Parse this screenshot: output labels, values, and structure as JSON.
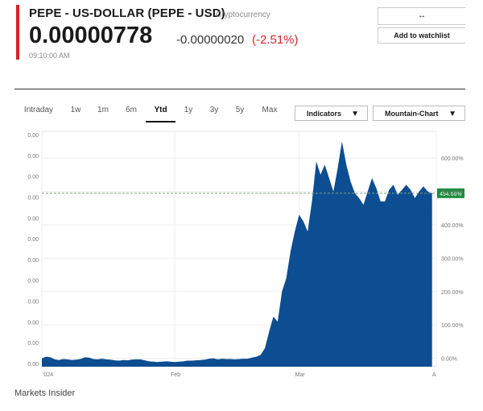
{
  "header": {
    "title": "PEPE - US-DOLLAR (PEPE - USD)",
    "category": "Cryptocurrency",
    "price": "0.00000778",
    "change": "-0.00000020",
    "change_pct": "(-2.51%)",
    "time": "09:10:00 AM",
    "top_button": "↔",
    "watchlist_button": "Add to watchlist",
    "accent_color": "#d6232a"
  },
  "tabs": [
    "Intraday",
    "1w",
    "1m",
    "6m",
    "Ytd",
    "1y",
    "3y",
    "5y",
    "Max"
  ],
  "active_tab": "Ytd",
  "controls": {
    "indicators": "Indicators",
    "chart_type": "Mountain-Chart"
  },
  "footer": {
    "source": "Markets Insider"
  },
  "chart_data": {
    "type": "area",
    "fill_color": "#0d4d91",
    "current_label": "494.66%",
    "current_label_color": "#1a8c3a",
    "x_ticks": [
      "'024",
      "Feb",
      "Mar",
      "A"
    ],
    "x_tick_days": [
      0,
      31,
      60,
      92
    ],
    "y_left_labels": [
      "0.00",
      "0.00",
      "0.00",
      "0.00",
      "0.00",
      "0.00",
      "0.00",
      "0.00",
      "0.00",
      "0.00",
      "0.00",
      "0.00"
    ],
    "y_right_ticks": [
      0,
      100,
      200,
      300,
      400,
      500,
      600
    ],
    "y_right_labels": [
      "0.00%",
      "100.00%",
      "200.00%",
      "300.00%",
      "400.00%",
      "500.00%",
      "600.00%"
    ],
    "xlim": [
      0,
      92
    ],
    "ylim": [
      -25,
      680
    ],
    "grid": true,
    "points": [
      [
        0,
        0
      ],
      [
        1,
        5
      ],
      [
        2,
        3
      ],
      [
        3,
        -3
      ],
      [
        4,
        -5
      ],
      [
        5,
        -2
      ],
      [
        6,
        -3
      ],
      [
        7,
        -5
      ],
      [
        8,
        -4
      ],
      [
        9,
        -2
      ],
      [
        10,
        3
      ],
      [
        11,
        2
      ],
      [
        12,
        -2
      ],
      [
        13,
        -3
      ],
      [
        14,
        -1
      ],
      [
        15,
        -3
      ],
      [
        16,
        -4
      ],
      [
        17,
        -6
      ],
      [
        18,
        -7
      ],
      [
        19,
        -5
      ],
      [
        20,
        -6
      ],
      [
        21,
        -4
      ],
      [
        22,
        -3
      ],
      [
        23,
        -3
      ],
      [
        24,
        -6
      ],
      [
        25,
        -9
      ],
      [
        26,
        -10
      ],
      [
        27,
        -11
      ],
      [
        28,
        -10
      ],
      [
        29,
        -9
      ],
      [
        30,
        -10
      ],
      [
        31,
        -11
      ],
      [
        32,
        -10
      ],
      [
        33,
        -9
      ],
      [
        34,
        -7
      ],
      [
        35,
        -7
      ],
      [
        36,
        -6
      ],
      [
        37,
        -5
      ],
      [
        38,
        -4
      ],
      [
        39,
        -1
      ],
      [
        40,
        0
      ],
      [
        41,
        -3
      ],
      [
        42,
        -1
      ],
      [
        43,
        -2
      ],
      [
        44,
        -2
      ],
      [
        45,
        -3
      ],
      [
        46,
        -2
      ],
      [
        47,
        -1
      ],
      [
        48,
        -1
      ],
      [
        49,
        2
      ],
      [
        50,
        5
      ],
      [
        51,
        10
      ],
      [
        52,
        30
      ],
      [
        53,
        80
      ],
      [
        54,
        125
      ],
      [
        55,
        110
      ],
      [
        56,
        200
      ],
      [
        57,
        240
      ],
      [
        58,
        320
      ],
      [
        59,
        380
      ],
      [
        60,
        430
      ],
      [
        61,
        410
      ],
      [
        62,
        380
      ],
      [
        63,
        470
      ],
      [
        64,
        590
      ],
      [
        65,
        550
      ],
      [
        66,
        580
      ],
      [
        67,
        540
      ],
      [
        68,
        500
      ],
      [
        69,
        570
      ],
      [
        70,
        650
      ],
      [
        71,
        580
      ],
      [
        72,
        530
      ],
      [
        73,
        495
      ],
      [
        74,
        480
      ],
      [
        75,
        460
      ],
      [
        76,
        500
      ],
      [
        77,
        540
      ],
      [
        78,
        510
      ],
      [
        79,
        470
      ],
      [
        80,
        470
      ],
      [
        81,
        505
      ],
      [
        82,
        520
      ],
      [
        83,
        490
      ],
      [
        84,
        505
      ],
      [
        85,
        520
      ],
      [
        86,
        505
      ],
      [
        87,
        480
      ],
      [
        88,
        500
      ],
      [
        89,
        515
      ],
      [
        90,
        500
      ],
      [
        91,
        494.66
      ]
    ]
  }
}
